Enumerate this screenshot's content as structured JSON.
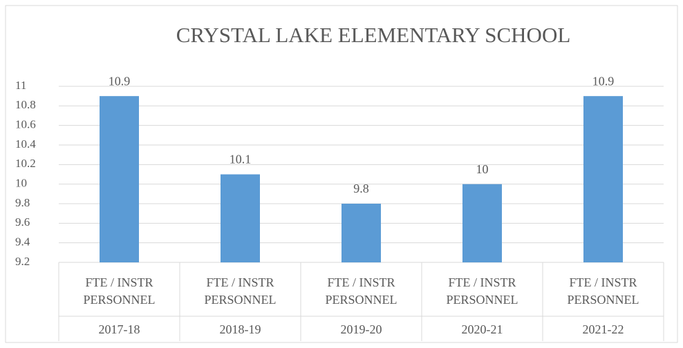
{
  "chart_data": {
    "type": "bar",
    "title": "CRYSTAL LAKE ELEMENTARY SCHOOL",
    "categories": [
      "FTE / INSTR PERSONNEL",
      "FTE / INSTR PERSONNEL",
      "FTE / INSTR PERSONNEL",
      "FTE / INSTR PERSONNEL",
      "FTE / INSTR PERSONNEL"
    ],
    "groups": [
      "2017-18",
      "2018-19",
      "2019-20",
      "2020-21",
      "2021-22"
    ],
    "values": [
      10.9,
      10.1,
      9.8,
      10,
      10.9
    ],
    "color": "#5b9bd5",
    "ylim": [
      9.2,
      11
    ],
    "yticks": [
      9.2,
      9.4,
      9.6,
      9.8,
      10,
      10.2,
      10.4,
      10.6,
      10.8,
      11
    ],
    "grid": true
  }
}
